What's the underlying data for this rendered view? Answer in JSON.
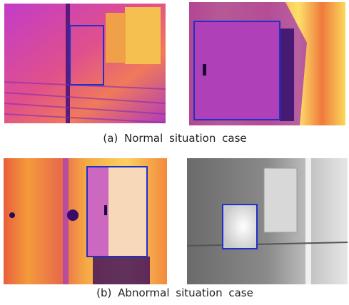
{
  "figure": {
    "captions": [
      "(a) Normal situation case",
      "(b) Abnormal situation case"
    ]
  }
}
